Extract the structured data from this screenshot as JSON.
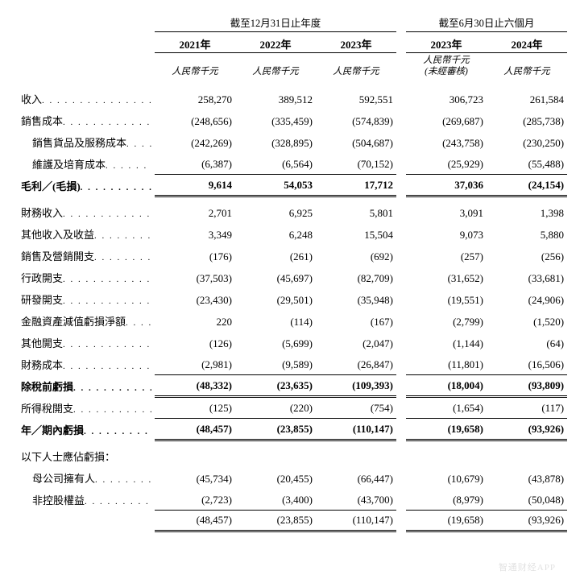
{
  "headers": {
    "period_annual": "截至12月31日止年度",
    "period_interim": "截至6月30日止六個月",
    "years": [
      "2021年",
      "2022年",
      "2023年",
      "2023年",
      "2024年"
    ],
    "unit": "人民幣千元",
    "unit_unaudited": "人民幣千元\n(未經審核)"
  },
  "rows": [
    {
      "label": "收入",
      "vals": [
        "258,270",
        "389,512",
        "592,551",
        "306,723",
        "261,584"
      ]
    },
    {
      "label": "銷售成本",
      "vals": [
        "(248,656)",
        "(335,459)",
        "(574,839)",
        "(269,687)",
        "(285,738)"
      ]
    },
    {
      "label": "銷售貨品及服務成本",
      "indent": 1,
      "vals": [
        "(242,269)",
        "(328,895)",
        "(504,687)",
        "(243,758)",
        "(230,250)"
      ]
    },
    {
      "label": "維護及培育成本",
      "indent": 1,
      "vals": [
        "(6,387)",
        "(6,564)",
        "(70,152)",
        "(25,929)",
        "(55,488)"
      ],
      "rule_after": "single"
    },
    {
      "label": "毛利／(毛損)",
      "bold": true,
      "vals": [
        "9,614",
        "54,053",
        "17,712",
        "37,036",
        "(24,154)"
      ],
      "rule_after": "double",
      "spacer_after": true
    },
    {
      "label": "財務收入",
      "vals": [
        "2,701",
        "6,925",
        "5,801",
        "3,091",
        "1,398"
      ]
    },
    {
      "label": "其他收入及收益",
      "vals": [
        "3,349",
        "6,248",
        "15,504",
        "9,073",
        "5,880"
      ]
    },
    {
      "label": "銷售及營銷開支",
      "vals": [
        "(176)",
        "(261)",
        "(692)",
        "(257)",
        "(256)"
      ]
    },
    {
      "label": "行政開支",
      "vals": [
        "(37,503)",
        "(45,697)",
        "(82,709)",
        "(31,652)",
        "(33,681)"
      ]
    },
    {
      "label": "研發開支",
      "vals": [
        "(23,430)",
        "(29,501)",
        "(35,948)",
        "(19,551)",
        "(24,906)"
      ]
    },
    {
      "label": "金融資產減值虧損淨額",
      "vals": [
        "220",
        "(114)",
        "(167)",
        "(2,799)",
        "(1,520)"
      ]
    },
    {
      "label": "其他開支",
      "vals": [
        "(126)",
        "(5,699)",
        "(2,047)",
        "(1,144)",
        "(64)"
      ]
    },
    {
      "label": "財務成本",
      "vals": [
        "(2,981)",
        "(9,589)",
        "(26,847)",
        "(11,801)",
        "(16,506)"
      ],
      "rule_after": "single"
    },
    {
      "label": "除稅前虧損",
      "bold": true,
      "vals": [
        "(48,332)",
        "(23,635)",
        "(109,393)",
        "(18,004)",
        "(93,809)"
      ],
      "rule_after": "double"
    },
    {
      "label": "所得稅開支",
      "vals": [
        "(125)",
        "(220)",
        "(754)",
        "(1,654)",
        "(117)"
      ],
      "rule_after": "single"
    },
    {
      "label": "年／期內虧損",
      "bold": true,
      "vals": [
        "(48,457)",
        "(23,855)",
        "(110,147)",
        "(19,658)",
        "(93,926)"
      ],
      "rule_after": "double",
      "spacer_after": true
    },
    {
      "label": "以下人士應佔虧損：",
      "vals": [
        "",
        "",
        "",
        "",
        ""
      ],
      "nodots": true
    },
    {
      "label": "母公司擁有人",
      "indent": 1,
      "vals": [
        "(45,734)",
        "(20,455)",
        "(66,447)",
        "(10,679)",
        "(43,878)"
      ]
    },
    {
      "label": "非控股權益",
      "indent": 1,
      "vals": [
        "(2,723)",
        "(3,400)",
        "(43,700)",
        "(8,979)",
        "(50,048)"
      ],
      "rule_after": "single"
    },
    {
      "label": "",
      "vals": [
        "(48,457)",
        "(23,855)",
        "(110,147)",
        "(19,658)",
        "(93,926)"
      ],
      "rule_after": "double"
    }
  ],
  "watermark": "智通财经APP"
}
